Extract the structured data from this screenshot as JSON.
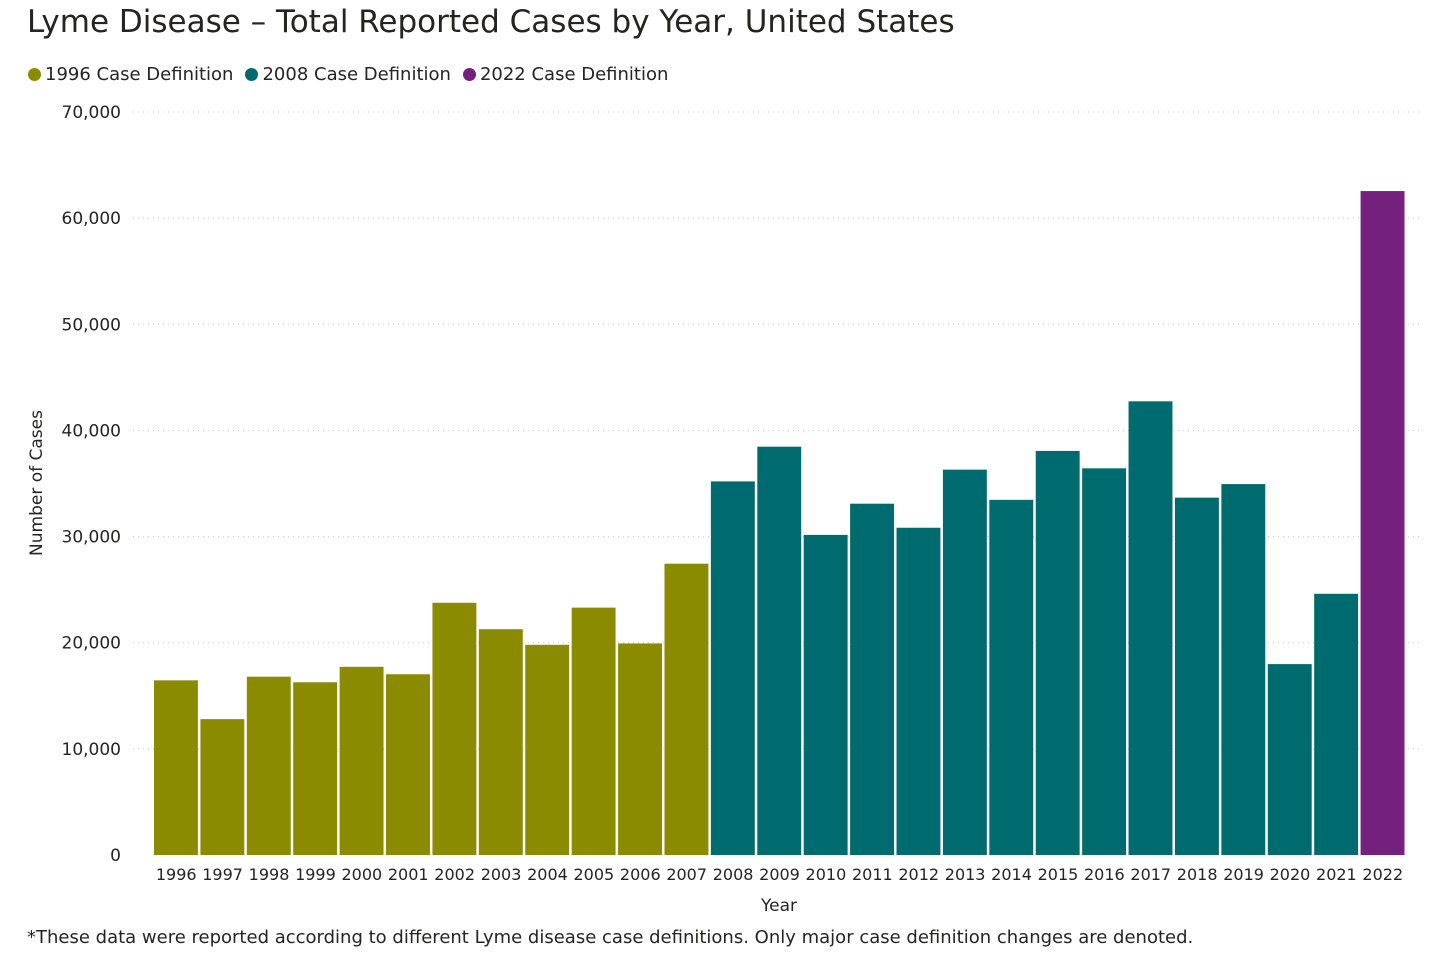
{
  "chart_data": {
    "type": "bar",
    "title": "Lyme Disease – Total Reported Cases by Year, United States",
    "xlabel": "Year",
    "ylabel": "Number of Cases",
    "ylim": [
      0,
      70000
    ],
    "yticks": [
      0,
      10000,
      20000,
      30000,
      40000,
      50000,
      60000,
      70000
    ],
    "ytick_labels": [
      "0",
      "10,000",
      "20,000",
      "30,000",
      "40,000",
      "50,000",
      "60,000",
      "70,000"
    ],
    "grid": "horizontal dotted",
    "legend_placement": "top-left",
    "legend": [
      {
        "name": "1996 Case Definition",
        "color": "#8B8B00"
      },
      {
        "name": "2008 Case Definition",
        "color": "#006B6E"
      },
      {
        "name": "2022 Case Definition",
        "color": "#74207D"
      }
    ],
    "categories": [
      "1996",
      "1997",
      "1998",
      "1999",
      "2000",
      "2001",
      "2002",
      "2003",
      "2004",
      "2005",
      "2006",
      "2007",
      "2008",
      "2009",
      "2010",
      "2011",
      "2012",
      "2013",
      "2014",
      "2015",
      "2016",
      "2017",
      "2018",
      "2019",
      "2020",
      "2021",
      "2022"
    ],
    "values": [
      16455,
      12801,
      16801,
      16273,
      17730,
      17029,
      23763,
      21273,
      19804,
      23305,
      19931,
      27444,
      35198,
      38468,
      30158,
      33097,
      30831,
      36307,
      33461,
      38069,
      36429,
      42743,
      33666,
      34945,
      17985,
      24610,
      62551
    ],
    "series_index": [
      0,
      0,
      0,
      0,
      0,
      0,
      0,
      0,
      0,
      0,
      0,
      0,
      1,
      1,
      1,
      1,
      1,
      1,
      1,
      1,
      1,
      1,
      1,
      1,
      1,
      1,
      2
    ]
  },
  "footnote": "*These data were reported according to different Lyme disease case definitions. Only major case definition changes are denoted."
}
